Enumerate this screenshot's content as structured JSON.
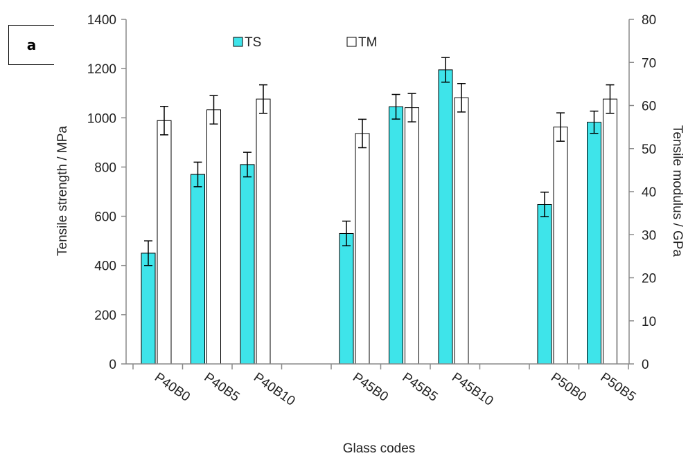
{
  "panel_label": "a",
  "colors": {
    "ts": "#3ee4ea",
    "tm": "#ffffff",
    "axis": "#888888",
    "text": "#222222",
    "error": "#000000"
  },
  "chart_data": {
    "type": "bar",
    "xlabel": "Glass codes",
    "ylabel": "Tensile strength / MPa",
    "y2label": "Tensile modulus / GPa",
    "ylim": [
      0,
      1400
    ],
    "y2lim": [
      0,
      80
    ],
    "yticks": [
      "0",
      "200",
      "400",
      "600",
      "800",
      "1000",
      "1200",
      "1400"
    ],
    "y2ticks": [
      "0",
      "10",
      "20",
      "30",
      "40",
      "50",
      "60",
      "70",
      "80"
    ],
    "categories": [
      "P40B0",
      "P40B5",
      "P40B10",
      "P45B0",
      "P45B5",
      "P45B10",
      "P50B0",
      "P50B5"
    ],
    "legend_position": "top",
    "series": [
      {
        "name": "TS",
        "axis": "left",
        "values": [
          450,
          770,
          810,
          530,
          1045,
          1195,
          648,
          982
        ],
        "errors": [
          50,
          50,
          50,
          50,
          50,
          50,
          50,
          45
        ]
      },
      {
        "name": "TM",
        "axis": "right",
        "values": [
          56.5,
          59.0,
          61.5,
          53.5,
          59.5,
          61.8,
          55.0,
          61.5
        ],
        "errors": [
          3.3,
          3.3,
          3.3,
          3.3,
          3.3,
          3.3,
          3.3,
          3.3
        ]
      }
    ]
  }
}
